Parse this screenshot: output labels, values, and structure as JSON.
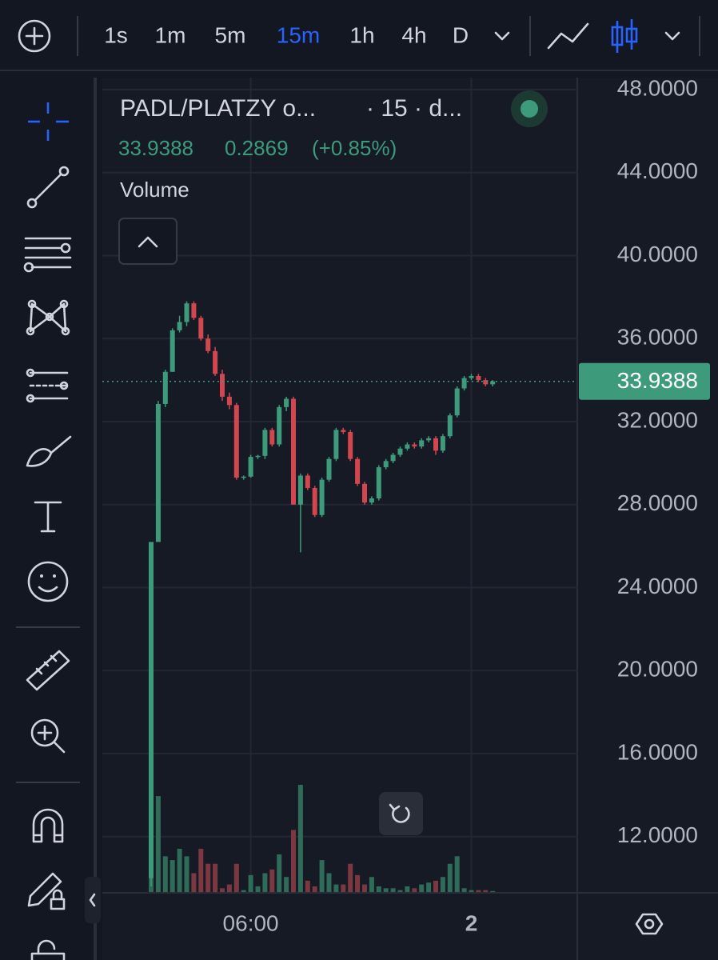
{
  "ui": {
    "intervals": [
      "1s",
      "1m",
      "5m",
      "15m",
      "1h",
      "4h",
      "D"
    ],
    "active_interval_index": 3
  },
  "chart_data": {
    "type": "candlestick",
    "title": "PADL/PLATZY o...",
    "subtitle": "· 15 · d...",
    "last_price": 33.9388,
    "change": 0.2869,
    "change_percent": {
      "value": 0.85,
      "label": "(+0.85%)"
    },
    "volume_label": "Volume",
    "categories": [
      null,
      null,
      null,
      null,
      null,
      null,
      null,
      null,
      null,
      null,
      null,
      null,
      null,
      null,
      "06:00",
      null,
      null,
      null,
      null,
      null,
      null,
      null,
      null,
      null,
      null,
      null,
      null,
      null,
      null,
      null,
      null,
      null,
      null,
      null,
      null,
      null,
      null,
      null,
      null,
      null,
      null,
      null,
      null,
      null,
      null,
      "2",
      null,
      null,
      null
    ],
    "open": [
      10.0,
      26.2,
      32.85,
      34.4,
      36.4,
      36.8,
      37.7,
      37.0,
      36.0,
      35.4,
      34.3,
      33.2,
      32.8,
      29.3,
      29.35,
      30.3,
      30.35,
      31.6,
      30.9,
      32.7,
      33.1,
      28.0,
      29.4,
      28.8,
      27.5,
      29.2,
      30.2,
      31.6,
      31.5,
      30.2,
      29.0,
      28.1,
      28.3,
      29.8,
      30.1,
      30.4,
      30.7,
      30.9,
      30.8,
      31.1,
      31.2,
      30.6,
      31.3,
      32.3,
      33.6,
      34.1,
      34.2,
      34.0,
      33.8
    ],
    "high": [
      26.2,
      33.0,
      34.5,
      36.5,
      37.1,
      37.8,
      37.8,
      37.1,
      36.2,
      35.6,
      34.5,
      33.4,
      32.9,
      29.4,
      30.4,
      30.4,
      31.7,
      31.7,
      32.8,
      33.2,
      33.2,
      29.5,
      29.5,
      28.9,
      29.3,
      30.3,
      31.7,
      31.7,
      31.6,
      30.3,
      29.1,
      28.4,
      29.9,
      30.2,
      30.5,
      30.8,
      31.0,
      31.0,
      31.2,
      31.3,
      31.3,
      31.4,
      32.4,
      33.7,
      34.2,
      34.3,
      34.3,
      34.1,
      34.0
    ],
    "low": [
      9.6,
      26.2,
      32.7,
      34.4,
      36.3,
      36.6,
      36.9,
      35.9,
      35.3,
      34.2,
      33.0,
      32.6,
      29.2,
      29.2,
      29.3,
      30.2,
      30.2,
      30.8,
      30.8,
      32.5,
      28.0,
      25.7,
      28.7,
      27.4,
      27.4,
      29.1,
      30.1,
      31.4,
      30.1,
      28.9,
      28.0,
      28.0,
      28.2,
      29.7,
      30.0,
      30.3,
      30.6,
      30.7,
      30.7,
      31.0,
      30.4,
      30.5,
      31.2,
      32.2,
      33.5,
      34.0,
      33.9,
      33.7,
      33.7
    ],
    "close": [
      26.2,
      32.85,
      34.4,
      36.4,
      36.8,
      37.7,
      37.0,
      36.0,
      35.4,
      34.3,
      33.2,
      32.8,
      29.3,
      29.35,
      30.3,
      30.35,
      31.6,
      30.9,
      32.7,
      33.1,
      28.0,
      29.4,
      28.8,
      27.5,
      29.2,
      30.2,
      31.6,
      31.5,
      30.2,
      29.0,
      28.1,
      28.3,
      29.8,
      30.1,
      30.4,
      30.7,
      30.9,
      30.8,
      31.1,
      31.2,
      30.6,
      31.3,
      32.3,
      33.6,
      34.1,
      34.2,
      34.0,
      33.8,
      33.9388
    ],
    "volume": [
      100,
      51,
      19,
      17,
      23,
      19,
      10,
      23,
      15,
      15,
      2,
      4,
      15,
      1,
      9,
      3,
      10,
      12,
      20,
      8,
      33,
      57,
      6,
      3,
      17,
      10,
      4,
      4,
      15,
      9,
      4,
      8,
      3,
      2,
      2,
      1,
      3,
      2,
      4,
      5,
      6,
      8,
      15,
      19,
      2,
      1,
      1,
      1,
      0.5
    ],
    "volume_lim": [
      0,
      100
    ],
    "ylim": [
      9.33,
      48.58
    ],
    "yticks": [
      {
        "value": 48,
        "label": "48.0000"
      },
      {
        "value": 44,
        "label": "44.0000"
      },
      {
        "value": 40,
        "label": "40.0000"
      },
      {
        "value": 36,
        "label": "36.0000"
      },
      {
        "value": 32,
        "label": "32.0000"
      },
      {
        "value": 28,
        "label": "28.0000"
      },
      {
        "value": 24,
        "label": "24.0000"
      },
      {
        "value": 20,
        "label": "20.0000"
      },
      {
        "value": 16,
        "label": "16.0000"
      },
      {
        "value": 12,
        "label": "12.0000"
      }
    ],
    "grid": true,
    "up_color": "#3d9b7c",
    "down_color": "#d2464f",
    "volume_up_color": "#2e6b58",
    "volume_down_color": "#7c3840"
  }
}
